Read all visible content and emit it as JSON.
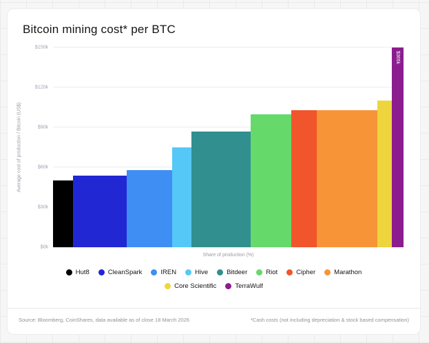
{
  "card": {
    "title": "Bitcoin mining cost* per BTC",
    "footer": {
      "source": "Source: Bloomberg, CoinShares, data available as of close 18 March 2026",
      "note": "*Cash costs (not including depreciation & stock based compensation)"
    }
  },
  "chart_data": {
    "type": "bar",
    "variant": "variable-width-marimekko",
    "title": "Bitcoin mining cost* per BTC",
    "xlabel": "Share of production (%)",
    "ylabel": "Average cost of production / Bitcoin (US$)",
    "ylim": [
      0,
      150000
    ],
    "yticks": [
      "$0k",
      "$30k",
      "$60k",
      "$90k",
      "$120k",
      "$150k"
    ],
    "grid": "horizontal",
    "legend_position": "bottom",
    "series": [
      {
        "name": "Hut8",
        "value_usd_k": 50,
        "share_pct": 5.7,
        "color": "#000000"
      },
      {
        "name": "CleanSpark",
        "value_usd_k": 54,
        "share_pct": 15.3,
        "color": "#2127d3"
      },
      {
        "name": "IREN",
        "value_usd_k": 58,
        "share_pct": 12.9,
        "color": "#3f8ef4"
      },
      {
        "name": "Hive",
        "value_usd_k": 75,
        "share_pct": 5.5,
        "color": "#55c8f7"
      },
      {
        "name": "Bitdeer",
        "value_usd_k": 87,
        "share_pct": 17.0,
        "color": "#318f8f"
      },
      {
        "name": "Riot",
        "value_usd_k": 100,
        "share_pct": 11.6,
        "color": "#66d96b"
      },
      {
        "name": "Cipher",
        "value_usd_k": 103,
        "share_pct": 7.2,
        "color": "#f1552b"
      },
      {
        "name": "Marathon",
        "value_usd_k": 103,
        "share_pct": 17.3,
        "color": "#f79438"
      },
      {
        "name": "Core Scientific",
        "value_usd_k": 110,
        "share_pct": 4.1,
        "color": "#eed53d"
      },
      {
        "name": "TerraWulf",
        "value_usd_k": 365,
        "share_pct": 3.4,
        "color": "#8b1d8f",
        "label": "$365k"
      }
    ]
  }
}
